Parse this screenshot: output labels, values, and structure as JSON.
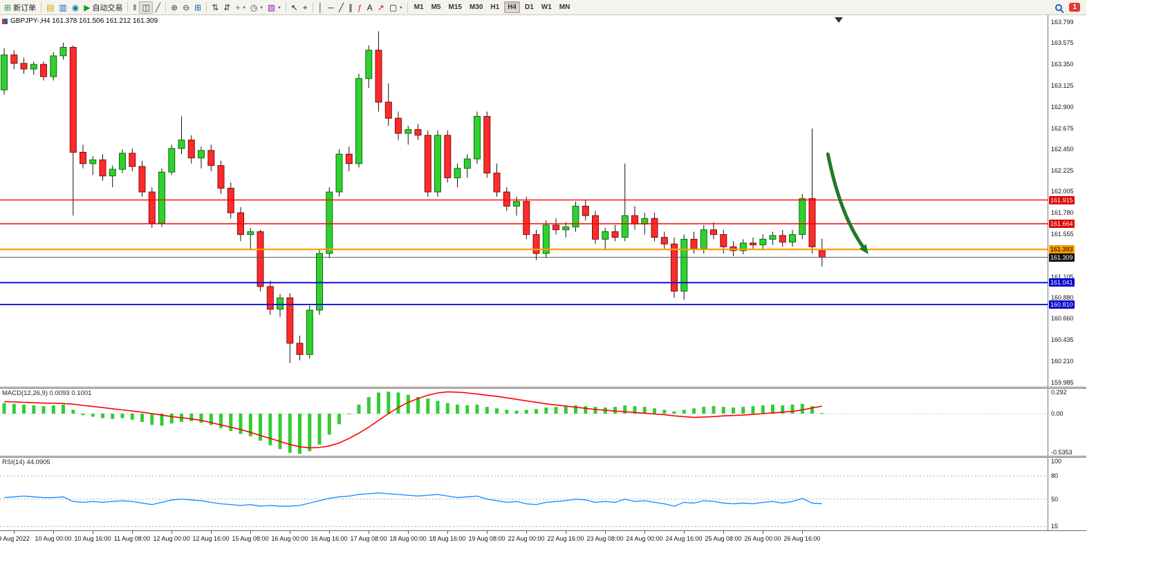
{
  "toolbar": {
    "dropdown_glyph": "▾",
    "badge": "1",
    "items": [
      {
        "name": "new-order-button",
        "glyph": "⊞",
        "glyph_color": "#1a9e3f",
        "label": "新订单"
      },
      {
        "name": "separator"
      },
      {
        "name": "charts-bar-button",
        "glyph": "▤",
        "glyph_color": "#d7a700"
      },
      {
        "name": "profiles-button",
        "glyph": "▥",
        "glyph_color": "#1565c0"
      },
      {
        "name": "market-watch-button",
        "glyph": "◉",
        "glyph_color": "#00838f"
      },
      {
        "name": "autotrading-button",
        "glyph": "▶",
        "glyph_color": "#13a10e",
        "label": "自动交易"
      },
      {
        "name": "separator"
      },
      {
        "name": "bar-chart-button",
        "glyph": "‖",
        "glyph_color": "#444"
      },
      {
        "name": "candlestick-button",
        "glyph": "◫",
        "glyph_color": "#444",
        "active": true
      },
      {
        "name": "line-chart-button",
        "glyph": "╱",
        "glyph_color": "#444"
      },
      {
        "name": "separator"
      },
      {
        "name": "zoom-in-button",
        "glyph": "⊕",
        "glyph_color": "#444"
      },
      {
        "name": "zoom-out-button",
        "glyph": "⊖",
        "glyph_color": "#444"
      },
      {
        "name": "tile-windows-button",
        "glyph": "⊞",
        "glyph_color": "#1565c0"
      },
      {
        "name": "separator"
      },
      {
        "name": "arrange-up-button",
        "glyph": "⇅",
        "glyph_color": "#444"
      },
      {
        "name": "arrange-down-button",
        "glyph": "⇵",
        "glyph_color": "#444"
      },
      {
        "name": "indicators-button",
        "glyph": "+",
        "glyph_color": "#13a10e",
        "dropdown": true
      },
      {
        "name": "periods-button",
        "glyph": "◷",
        "glyph_color": "#444",
        "dropdown": true
      },
      {
        "name": "templates-button",
        "glyph": "▨",
        "glyph_color": "#8e24aa",
        "dropdown": true
      },
      {
        "name": "separator"
      },
      {
        "name": "cursor-button",
        "glyph": "↖",
        "glyph_color": "#222"
      },
      {
        "name": "crosshair-button",
        "glyph": "+",
        "glyph_color": "#222"
      },
      {
        "name": "separator"
      },
      {
        "name": "vertical-line-button",
        "glyph": "│",
        "glyph_color": "#222"
      },
      {
        "name": "horizontal-line-button",
        "glyph": "─",
        "glyph_color": "#222"
      },
      {
        "name": "trendline-button",
        "glyph": "╱",
        "glyph_color": "#222"
      },
      {
        "name": "channel-button",
        "glyph": "∥",
        "glyph_color": "#222"
      },
      {
        "name": "fibonacci-button",
        "glyph": "ƒ",
        "glyph_color": "#c2185b"
      },
      {
        "name": "text-button",
        "glyph": "A",
        "glyph_color": "#222"
      },
      {
        "name": "arrows-button",
        "glyph": "↗",
        "glyph_color": "#b71c1c"
      },
      {
        "name": "shapes-button",
        "glyph": "▢",
        "glyph_color": "#222",
        "dropdown": true
      },
      {
        "name": "separator"
      }
    ],
    "timeframes": [
      {
        "label": "M1"
      },
      {
        "label": "M5"
      },
      {
        "label": "M15"
      },
      {
        "label": "M30"
      },
      {
        "label": "H1"
      },
      {
        "label": "H4",
        "active": true
      },
      {
        "label": "D1"
      },
      {
        "label": "W1"
      },
      {
        "label": "MN"
      }
    ]
  },
  "chart_data": {
    "type": "candlestick",
    "title": "GBPJPY-,H4 161.378 161.506 161.212 161.309",
    "symbol": "GBPJPY-",
    "period": "H4",
    "price_range": {
      "max": 163.87,
      "min": 159.94
    },
    "price_axis_labels": [
      "163.799",
      "163.575",
      "163.350",
      "163.125",
      "162.900",
      "162.675",
      "162.450",
      "162.225",
      "162.005",
      "161.780",
      "161.555",
      "161.330",
      "161.105",
      "160.880",
      "160.660",
      "160.435",
      "160.210",
      "159.985"
    ],
    "candles": [
      [
        163.08,
        163.52,
        163.03,
        163.45
      ],
      [
        163.45,
        163.5,
        163.3,
        163.36
      ],
      [
        163.36,
        163.42,
        163.25,
        163.3
      ],
      [
        163.3,
        163.38,
        163.24,
        163.35
      ],
      [
        163.35,
        163.38,
        163.18,
        163.22
      ],
      [
        163.22,
        163.48,
        163.18,
        163.44
      ],
      [
        163.44,
        163.58,
        163.4,
        163.53
      ],
      [
        163.53,
        163.55,
        161.75,
        162.42
      ],
      [
        162.42,
        162.5,
        162.25,
        162.3
      ],
      [
        162.3,
        162.38,
        162.18,
        162.34
      ],
      [
        162.34,
        162.4,
        162.12,
        162.17
      ],
      [
        162.17,
        162.28,
        162.05,
        162.24
      ],
      [
        162.24,
        162.45,
        162.2,
        162.41
      ],
      [
        162.41,
        162.46,
        162.22,
        162.27
      ],
      [
        162.27,
        162.33,
        161.95,
        162.0
      ],
      [
        162.0,
        162.05,
        161.62,
        161.67
      ],
      [
        161.67,
        162.25,
        161.63,
        162.21
      ],
      [
        162.21,
        162.5,
        162.18,
        162.46
      ],
      [
        162.46,
        162.8,
        162.4,
        162.55
      ],
      [
        162.55,
        162.6,
        162.3,
        162.36
      ],
      [
        162.36,
        162.48,
        162.25,
        162.44
      ],
      [
        162.44,
        162.5,
        162.22,
        162.28
      ],
      [
        162.28,
        162.33,
        161.98,
        162.04
      ],
      [
        162.04,
        162.1,
        161.72,
        161.78
      ],
      [
        161.78,
        161.84,
        161.48,
        161.55
      ],
      [
        161.55,
        161.62,
        161.4,
        161.58
      ],
      [
        161.58,
        161.6,
        160.95,
        161.0
      ],
      [
        161.0,
        161.06,
        160.7,
        160.76
      ],
      [
        160.76,
        160.92,
        160.68,
        160.88
      ],
      [
        160.88,
        160.93,
        160.19,
        160.4
      ],
      [
        160.4,
        160.48,
        160.22,
        160.28
      ],
      [
        160.28,
        160.8,
        160.24,
        160.75
      ],
      [
        160.75,
        161.4,
        160.7,
        161.35
      ],
      [
        161.35,
        162.05,
        161.3,
        162.0
      ],
      [
        162.0,
        162.45,
        161.95,
        162.4
      ],
      [
        162.4,
        162.48,
        162.22,
        162.3
      ],
      [
        162.3,
        163.25,
        162.26,
        163.2
      ],
      [
        163.2,
        163.55,
        163.1,
        163.5
      ],
      [
        163.5,
        163.7,
        162.85,
        162.95
      ],
      [
        162.95,
        163.15,
        162.7,
        162.78
      ],
      [
        162.78,
        162.85,
        162.55,
        162.62
      ],
      [
        162.62,
        162.7,
        162.5,
        162.66
      ],
      [
        162.66,
        162.72,
        162.55,
        162.6
      ],
      [
        162.6,
        162.65,
        161.95,
        162.0
      ],
      [
        162.0,
        162.65,
        161.95,
        162.6
      ],
      [
        162.6,
        162.65,
        162.1,
        162.15
      ],
      [
        162.15,
        162.3,
        162.05,
        162.25
      ],
      [
        162.25,
        162.4,
        162.15,
        162.35
      ],
      [
        162.35,
        162.85,
        162.3,
        162.8
      ],
      [
        162.8,
        162.85,
        162.15,
        162.2
      ],
      [
        162.2,
        162.3,
        161.95,
        162.0
      ],
      [
        162.0,
        162.05,
        161.8,
        161.85
      ],
      [
        161.85,
        161.95,
        161.75,
        161.9
      ],
      [
        161.9,
        161.95,
        161.5,
        161.55
      ],
      [
        161.55,
        161.6,
        161.28,
        161.35
      ],
      [
        161.35,
        161.7,
        161.3,
        161.65
      ],
      [
        161.65,
        161.72,
        161.55,
        161.6
      ],
      [
        161.6,
        161.68,
        161.52,
        161.63
      ],
      [
        161.63,
        161.9,
        161.58,
        161.85
      ],
      [
        161.85,
        161.92,
        161.7,
        161.75
      ],
      [
        161.75,
        161.8,
        161.45,
        161.5
      ],
      [
        161.5,
        161.62,
        161.4,
        161.58
      ],
      [
        161.58,
        161.65,
        161.48,
        161.52
      ],
      [
        161.52,
        162.3,
        161.48,
        161.75
      ],
      [
        161.75,
        161.85,
        161.6,
        161.66
      ],
      [
        161.66,
        161.78,
        161.55,
        161.72
      ],
      [
        161.72,
        161.78,
        161.48,
        161.52
      ],
      [
        161.52,
        161.58,
        161.4,
        161.45
      ],
      [
        161.45,
        161.52,
        160.88,
        160.95
      ],
      [
        160.95,
        161.55,
        160.86,
        161.5
      ],
      [
        161.5,
        161.58,
        161.35,
        161.4
      ],
      [
        161.4,
        161.65,
        161.35,
        161.6
      ],
      [
        161.6,
        161.68,
        161.5,
        161.55
      ],
      [
        161.55,
        161.6,
        161.35,
        161.42
      ],
      [
        161.42,
        161.48,
        161.32,
        161.38
      ],
      [
        161.38,
        161.5,
        161.34,
        161.46
      ],
      [
        161.46,
        161.52,
        161.4,
        161.44
      ],
      [
        161.44,
        161.55,
        161.4,
        161.5
      ],
      [
        161.5,
        161.58,
        161.44,
        161.54
      ],
      [
        161.54,
        161.6,
        161.42,
        161.47
      ],
      [
        161.47,
        161.6,
        161.42,
        161.55
      ],
      [
        161.55,
        161.98,
        161.5,
        161.93
      ],
      [
        161.93,
        162.67,
        161.35,
        161.42
      ],
      [
        161.378,
        161.506,
        161.212,
        161.309
      ]
    ],
    "colors": {
      "bull": "#2fd12f",
      "bull_border": "#0f6d0f",
      "bear": "#ff2b2b",
      "bear_border": "#7c0f0f"
    },
    "horizontal_lines": [
      {
        "name": "resistance-line-1",
        "price": 161.915,
        "color": "#ff0000",
        "width": 1.4,
        "label": "161.915",
        "label_bg": "#dd0000",
        "label_fg": "#ffffff"
      },
      {
        "name": "resistance-line-2",
        "price": 161.664,
        "color": "#ff0000",
        "width": 1.4,
        "label": "161.664",
        "label_bg": "#dd0000",
        "label_fg": "#ffffff"
      },
      {
        "name": "support-line-orange",
        "price": 161.393,
        "color": "#ff9d00",
        "width": 2.2,
        "label": "161.393",
        "label_bg": "#ff9d00",
        "label_fg": "#000000"
      },
      {
        "name": "support-line-blue-1",
        "price": 161.041,
        "color": "#0000dd",
        "width": 1.8,
        "label": "161.041",
        "label_bg": "#0000cc",
        "label_fg": "#ffffff"
      },
      {
        "name": "support-line-blue-2",
        "price": 160.81,
        "color": "#0000dd",
        "width": 1.8,
        "label": "160.810",
        "label_bg": "#0000cc",
        "label_fg": "#ffffff"
      },
      {
        "name": "current-price-line",
        "price": 161.309,
        "color": "#555555",
        "width": 1,
        "label": "161.309",
        "label_bg": "#111111",
        "label_fg": "#ffffff"
      }
    ],
    "arrow_annotation": {
      "from": {
        "bar": 83.6,
        "price": 162.4
      },
      "to": {
        "bar": 87.7,
        "price": 161.34
      },
      "color": "#1f7a28",
      "width": 5
    },
    "time_axis": {
      "first_bar_index": 1,
      "bar_step": 4,
      "labels": [
        "9 Aug 2022",
        "10 Aug 00:00",
        "10 Aug 16:00",
        "11 Aug 08:00",
        "12 Aug 00:00",
        "12 Aug 16:00",
        "15 Aug 08:00",
        "16 Aug 00:00",
        "16 Aug 16:00",
        "17 Aug 08:00",
        "18 Aug 00:00",
        "18 Aug 16:00",
        "19 Aug 08:00",
        "22 Aug 00:00",
        "22 Aug 16:00",
        "23 Aug 08:00",
        "24 Aug 00:00",
        "24 Aug 16:00",
        "25 Aug 08:00",
        "26 Aug 00:00",
        "26 Aug 16:00"
      ]
    },
    "indicators": {
      "macd": {
        "label": "MACD(12,26,9) 0.0093 0.1001",
        "scale_labels": [
          "0.292",
          "0.00",
          "-0.5353"
        ],
        "range": {
          "max": 0.33,
          "min": -0.56
        },
        "histogram_color": "#32CD32",
        "signal_color": "#ff0000",
        "histogram": [
          0.14,
          0.13,
          0.12,
          0.11,
          0.1,
          0.11,
          0.12,
          0.05,
          -0.02,
          -0.04,
          -0.06,
          -0.07,
          -0.06,
          -0.08,
          -0.11,
          -0.15,
          -0.16,
          -0.13,
          -0.11,
          -0.1,
          -0.12,
          -0.15,
          -0.19,
          -0.23,
          -0.27,
          -0.3,
          -0.36,
          -0.42,
          -0.47,
          -0.52,
          -0.5353,
          -0.5,
          -0.41,
          -0.28,
          -0.14,
          0.0,
          0.12,
          0.22,
          0.28,
          0.292,
          0.28,
          0.25,
          0.22,
          0.2,
          0.17,
          0.14,
          0.12,
          0.11,
          0.12,
          0.09,
          0.07,
          0.05,
          0.04,
          0.05,
          0.06,
          0.08,
          0.09,
          0.1,
          0.11,
          0.1,
          0.09,
          0.08,
          0.09,
          0.11,
          0.1,
          0.09,
          0.07,
          0.05,
          0.03,
          0.05,
          0.07,
          0.09,
          0.1,
          0.09,
          0.08,
          0.09,
          0.1,
          0.11,
          0.12,
          0.11,
          0.12,
          0.13,
          0.1,
          0.0093
        ],
        "signal": [
          0.16,
          0.155,
          0.15,
          0.145,
          0.14,
          0.138,
          0.135,
          0.125,
          0.11,
          0.095,
          0.08,
          0.065,
          0.05,
          0.035,
          0.02,
          0.0,
          -0.02,
          -0.04,
          -0.055,
          -0.07,
          -0.09,
          -0.12,
          -0.15,
          -0.18,
          -0.21,
          -0.25,
          -0.29,
          -0.33,
          -0.37,
          -0.41,
          -0.44,
          -0.455,
          -0.45,
          -0.43,
          -0.39,
          -0.33,
          -0.26,
          -0.18,
          -0.09,
          0.0,
          0.08,
          0.15,
          0.2,
          0.245,
          0.275,
          0.29,
          0.285,
          0.275,
          0.26,
          0.245,
          0.23,
          0.21,
          0.19,
          0.17,
          0.15,
          0.13,
          0.115,
          0.1,
          0.085,
          0.07,
          0.055,
          0.045,
          0.035,
          0.025,
          0.015,
          0.005,
          -0.005,
          -0.015,
          -0.03,
          -0.04,
          -0.05,
          -0.045,
          -0.04,
          -0.03,
          -0.025,
          -0.02,
          -0.01,
          0.0,
          0.01,
          0.02,
          0.03,
          0.05,
          0.075,
          0.1001
        ]
      },
      "rsi": {
        "label": "RSI(14) 44.0905",
        "scale_labels": [
          "100",
          "80",
          "50",
          "15"
        ],
        "levels": [
          80,
          50,
          15
        ],
        "range": {
          "max": 103,
          "min": 10
        },
        "line_color": "#1E90FF",
        "values": [
          52,
          53,
          54,
          53,
          52,
          52,
          53,
          47,
          46,
          47,
          46,
          47,
          48,
          47,
          45,
          43,
          46,
          49,
          50,
          49,
          48,
          46,
          44,
          43,
          42,
          43,
          41,
          42,
          41,
          41,
          42,
          45,
          48,
          51,
          53,
          54,
          56,
          57,
          58,
          57,
          56,
          55,
          54,
          55,
          56,
          54,
          52,
          53,
          54,
          50,
          48,
          46,
          47,
          44,
          43,
          46,
          47,
          48,
          50,
          49,
          46,
          47,
          46,
          50,
          47,
          48,
          46,
          44,
          41,
          46,
          45,
          48,
          47,
          45,
          44,
          45,
          44,
          46,
          47,
          45,
          47,
          51,
          45,
          44.09
        ]
      }
    }
  }
}
